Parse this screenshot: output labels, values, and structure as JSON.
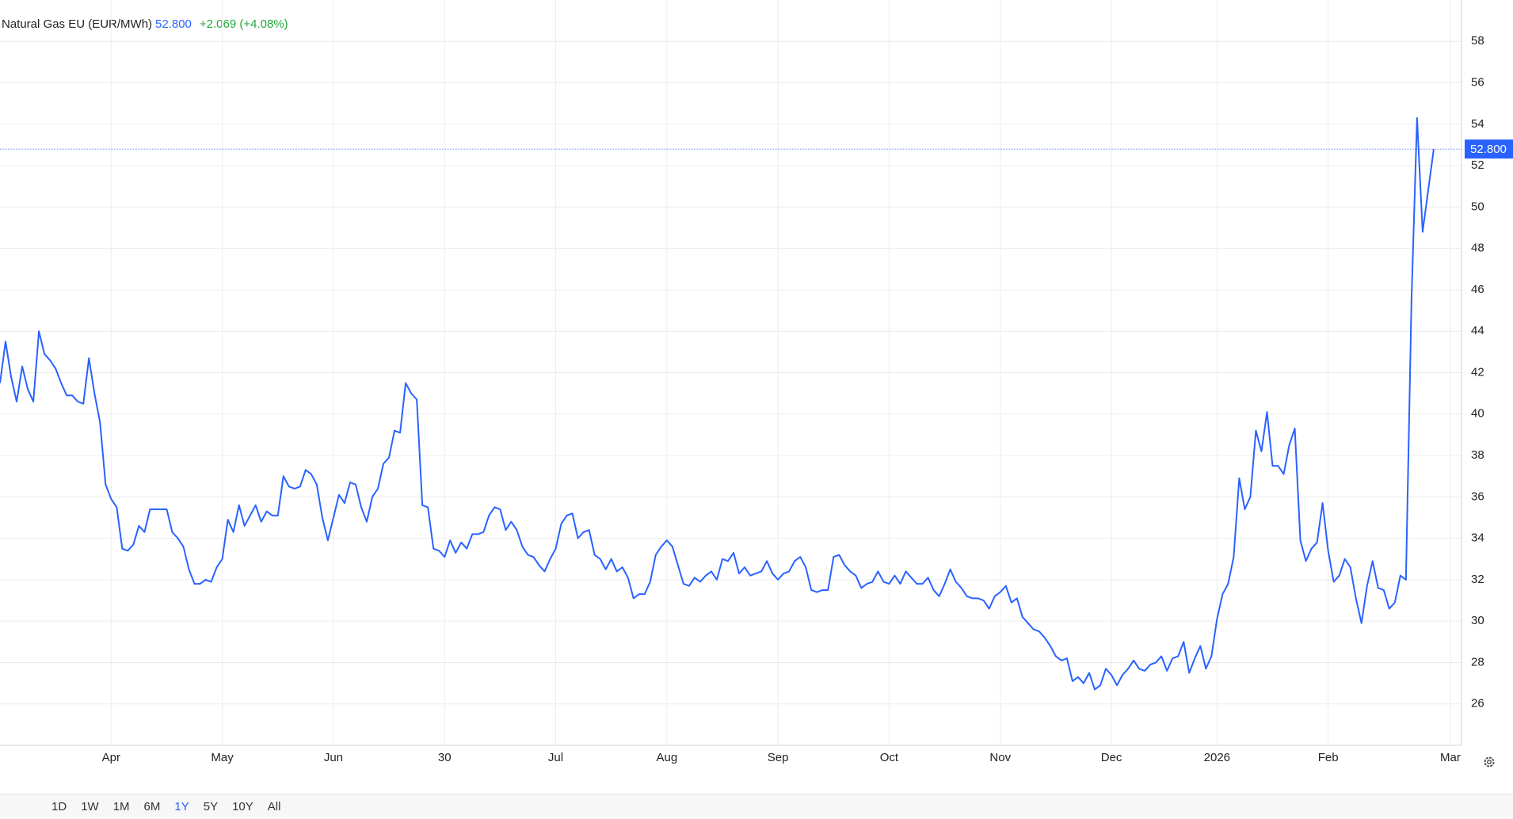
{
  "chart_data": {
    "type": "line",
    "title": "Natural Gas EU (EUR/MWh)",
    "price": {
      "value": 52.8,
      "label": "52.800"
    },
    "change": "+2.069 (+4.08%)",
    "xlim": [
      0,
      263
    ],
    "xticks": [
      {
        "value": 20,
        "label": "Apr"
      },
      {
        "value": 40,
        "label": "May"
      },
      {
        "value": 60,
        "label": "Jun"
      },
      {
        "value": 80,
        "label": "30"
      },
      {
        "value": 100,
        "label": "Jul"
      },
      {
        "value": 120,
        "label": "Aug"
      },
      {
        "value": 140,
        "label": "Sep"
      },
      {
        "value": 160,
        "label": "Oct"
      },
      {
        "value": 180,
        "label": "Nov"
      },
      {
        "value": 200,
        "label": "Dec"
      },
      {
        "value": 219,
        "label": "2026"
      },
      {
        "value": 239,
        "label": "Feb"
      },
      {
        "value": 261,
        "label": "Mar"
      }
    ],
    "ylim": [
      24,
      60
    ],
    "yticks": [
      26,
      28,
      30,
      32,
      34,
      36,
      38,
      40,
      42,
      44,
      46,
      48,
      50,
      52,
      54,
      56,
      58
    ],
    "grid": true,
    "series": [
      {
        "name": "Natural Gas EU",
        "color": "#2962ff",
        "values": [
          41.5,
          43.5,
          41.8,
          40.6,
          42.3,
          41.2,
          40.6,
          44,
          42.9,
          42.6,
          42.2,
          41.5,
          40.9,
          40.9,
          40.6,
          40.5,
          42.7,
          41,
          39.6,
          36.6,
          35.9,
          35.5,
          33.5,
          33.4,
          33.7,
          34.6,
          34.3,
          35.4,
          35.4,
          35.4,
          35.4,
          34.3,
          34,
          33.6,
          32.5,
          31.8,
          31.8,
          32,
          31.9,
          32.6,
          33,
          34.9,
          34.3,
          35.6,
          34.6,
          35.1,
          35.6,
          34.8,
          35.3,
          35.1,
          35.1,
          37,
          36.5,
          36.4,
          36.5,
          37.3,
          37.1,
          36.6,
          35,
          33.9,
          35,
          36.1,
          35.7,
          36.7,
          36.6,
          35.5,
          34.8,
          36,
          36.4,
          37.6,
          37.9,
          39.2,
          39.1,
          41.5,
          41,
          40.7,
          35.6,
          35.5,
          33.5,
          33.4,
          33.1,
          33.9,
          33.3,
          33.8,
          33.5,
          34.2,
          34.2,
          34.3,
          35.1,
          35.5,
          35.4,
          34.4,
          34.8,
          34.4,
          33.6,
          33.2,
          33.1,
          32.7,
          32.4,
          33,
          33.5,
          34.7,
          35.1,
          35.2,
          34,
          34.3,
          34.4,
          33.2,
          33,
          32.5,
          33,
          32.4,
          32.6,
          32.1,
          31.1,
          31.3,
          31.3,
          31.9,
          33.2,
          33.6,
          33.9,
          33.6,
          32.7,
          31.8,
          31.7,
          32.1,
          31.9,
          32.2,
          32.4,
          32,
          33,
          32.9,
          33.3,
          32.3,
          32.6,
          32.2,
          32.3,
          32.4,
          32.9,
          32.3,
          32,
          32.3,
          32.4,
          32.9,
          33.1,
          32.6,
          31.5,
          31.4,
          31.5,
          31.5,
          33.1,
          33.2,
          32.7,
          32.4,
          32.2,
          31.6,
          31.8,
          31.9,
          32.4,
          31.9,
          31.8,
          32.2,
          31.8,
          32.4,
          32.1,
          31.8,
          31.8,
          32.1,
          31.5,
          31.2,
          31.8,
          32.5,
          31.9,
          31.6,
          31.2,
          31.1,
          31.1,
          31,
          30.6,
          31.2,
          31.4,
          31.7,
          30.9,
          31.1,
          30.2,
          29.9,
          29.6,
          29.5,
          29.2,
          28.8,
          28.3,
          28.1,
          28.2,
          27.1,
          27.3,
          27,
          27.5,
          26.7,
          26.9,
          27.7,
          27.4,
          26.9,
          27.4,
          27.7,
          28.1,
          27.7,
          27.6,
          27.9,
          28,
          28.3,
          27.6,
          28.2,
          28.3,
          29,
          27.5,
          28.2,
          28.8,
          27.7,
          28.3,
          30.1,
          31.3,
          31.8,
          33.1,
          36.9,
          35.4,
          36,
          39.2,
          38.2,
          40.1,
          37.5,
          37.5,
          37.1,
          38.5,
          39.3,
          33.9,
          32.9,
          33.5,
          33.8,
          35.7,
          33.4,
          31.9,
          32.2,
          33,
          32.6,
          31.1,
          29.9,
          31.7,
          32.9,
          31.6,
          31.5,
          30.6,
          30.9,
          32.2,
          32,
          45.5,
          54.3,
          48.8,
          50.8,
          52.8
        ]
      }
    ]
  },
  "range_buttons": [
    "1D",
    "1W",
    "1M",
    "6M",
    "1Y",
    "5Y",
    "10Y",
    "All"
  ],
  "active_range": 4
}
